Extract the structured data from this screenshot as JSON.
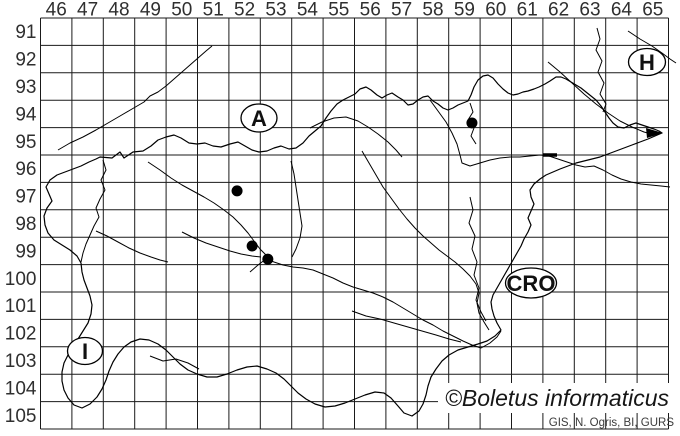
{
  "grid": {
    "col_labels": [
      "46",
      "47",
      "48",
      "49",
      "50",
      "51",
      "52",
      "53",
      "54",
      "55",
      "56",
      "57",
      "58",
      "59",
      "60",
      "61",
      "62",
      "63",
      "64",
      "65"
    ],
    "row_labels": [
      "91",
      "92",
      "93",
      "94",
      "95",
      "96",
      "97",
      "98",
      "99",
      "100",
      "101",
      "102",
      "103",
      "104",
      "105"
    ]
  },
  "countries": {
    "austria": {
      "label": "A"
    },
    "hungary": {
      "label": "H"
    },
    "croatia": {
      "label": "CRO"
    },
    "italy": {
      "label": "I"
    }
  },
  "records": {
    "dots": [
      {
        "col": 52.26,
        "row": 97.31
      },
      {
        "col": 52.74,
        "row": 99.32
      },
      {
        "col": 53.24,
        "row": 99.8
      },
      {
        "col": 59.74,
        "row": 94.83
      }
    ],
    "color": "#000000",
    "radius": 5.5
  },
  "attribution": {
    "title": "©Boletus informaticus",
    "credits": "GIS, N. Ogris, BI, GURS"
  },
  "colors": {
    "grid_line": "#1a1a1a",
    "grid_label": "#2f2f2f",
    "outline": "#000000"
  }
}
